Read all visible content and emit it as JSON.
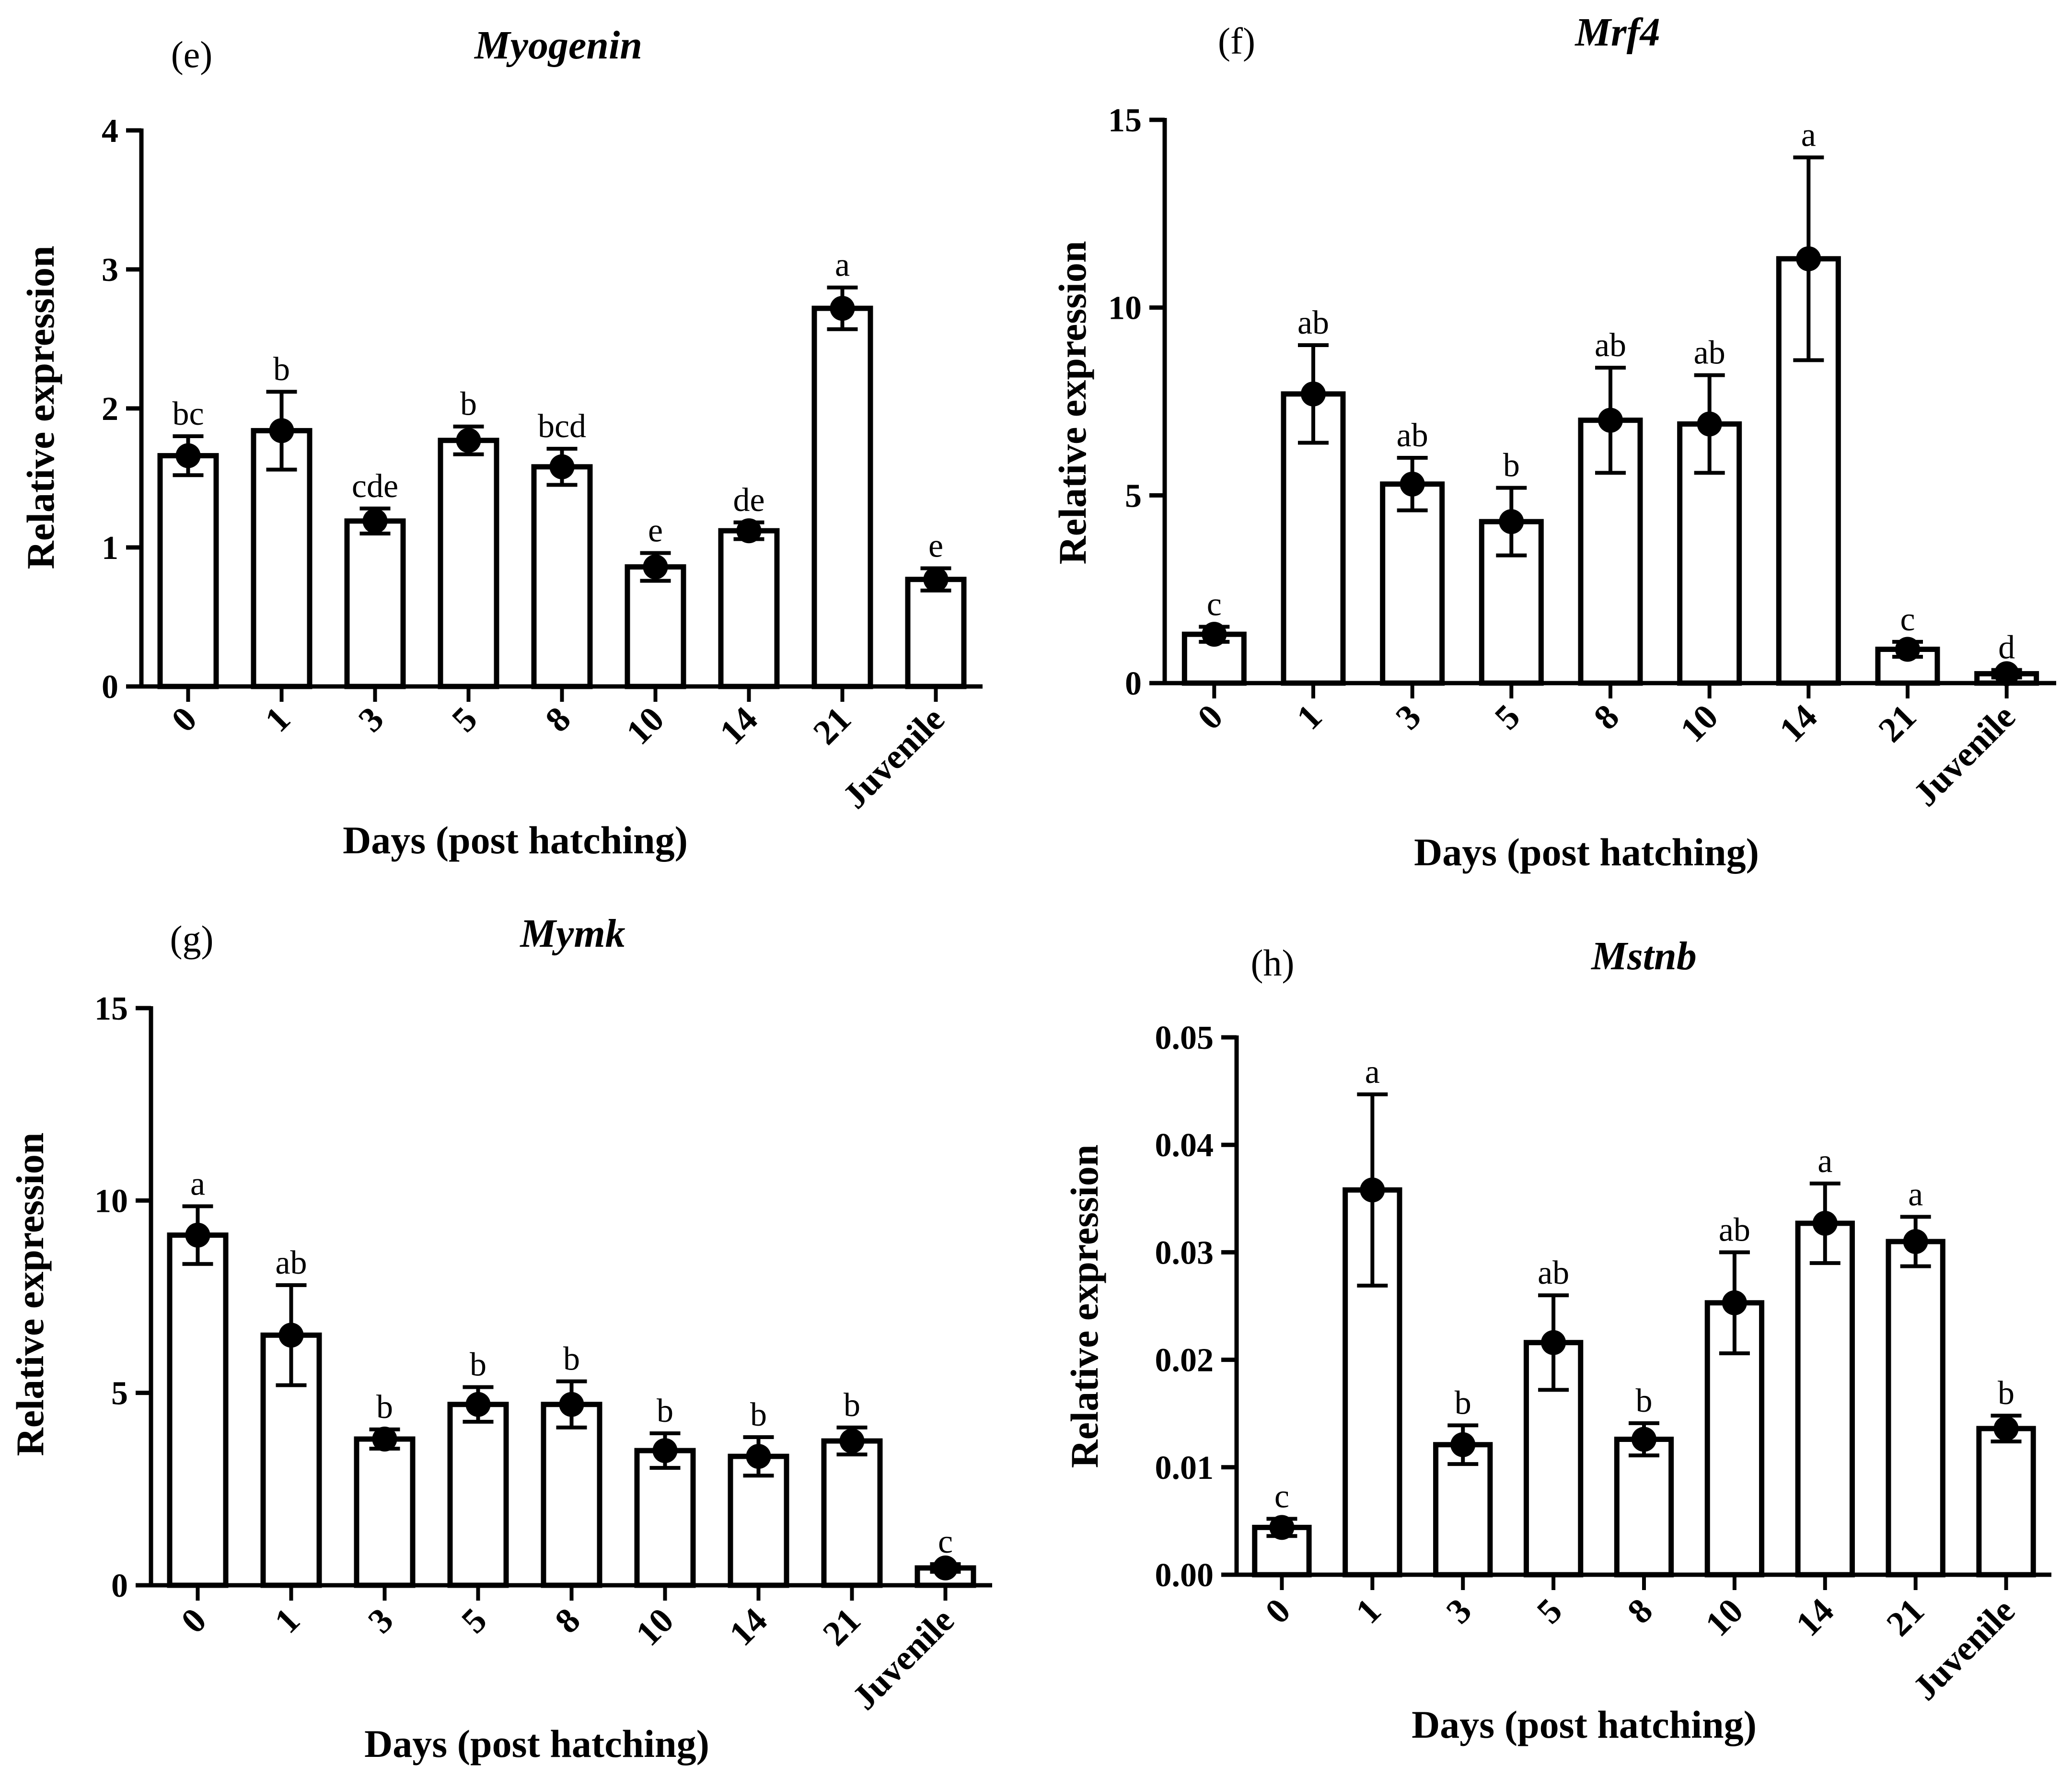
{
  "chart_data": [
    {
      "type": "bar",
      "panel": "(e)",
      "title": "Myogenin",
      "xlabel": "Days (post hatching)",
      "ylabel": "Relative expression",
      "ylim": [
        0,
        4
      ],
      "yticks": [
        "0",
        "1",
        "2",
        "3",
        "4"
      ],
      "categories": [
        "0",
        "1",
        "3",
        "5",
        "8",
        "10",
        "14",
        "21",
        "Juvenile"
      ],
      "values": [
        1.66,
        1.84,
        1.19,
        1.77,
        1.58,
        0.86,
        1.12,
        2.72,
        0.77
      ],
      "errors": [
        0.14,
        0.28,
        0.09,
        0.1,
        0.13,
        0.1,
        0.06,
        0.15,
        0.08
      ],
      "significance": [
        "bc",
        "b",
        "cde",
        "b",
        "bcd",
        "e",
        "de",
        "a",
        "e"
      ]
    },
    {
      "type": "bar",
      "panel": "(f)",
      "title": "Mrf4",
      "xlabel": "Days (post hatching)",
      "ylabel": "Relative expression",
      "ylim": [
        0,
        15
      ],
      "yticks": [
        "0",
        "5",
        "10",
        "15"
      ],
      "categories": [
        "0",
        "1",
        "3",
        "5",
        "8",
        "10",
        "14",
        "21",
        "Juvenile"
      ],
      "values": [
        1.3,
        7.7,
        5.3,
        4.3,
        7.0,
        6.9,
        11.3,
        0.9,
        0.25
      ],
      "errors": [
        0.2,
        1.3,
        0.7,
        0.9,
        1.4,
        1.3,
        2.7,
        0.2,
        0.1
      ],
      "significance": [
        "c",
        "ab",
        "ab",
        "b",
        "ab",
        "ab",
        "a",
        "c",
        "d"
      ]
    },
    {
      "type": "bar",
      "panel": "(g)",
      "title": "Mymk",
      "xlabel": "Days (post hatching)",
      "ylabel": "Relative expression",
      "ylim": [
        0,
        15
      ],
      "yticks": [
        "0",
        "5",
        "10",
        "15"
      ],
      "categories": [
        "0",
        "1",
        "3",
        "5",
        "8",
        "10",
        "14",
        "21",
        "Juvenile"
      ],
      "values": [
        9.1,
        6.5,
        3.8,
        4.7,
        4.7,
        3.5,
        3.35,
        3.75,
        0.45
      ],
      "errors": [
        0.75,
        1.3,
        0.25,
        0.45,
        0.6,
        0.45,
        0.5,
        0.35,
        0.1
      ],
      "significance": [
        "a",
        "ab",
        "b",
        "b",
        "b",
        "b",
        "b",
        "b",
        "c"
      ]
    },
    {
      "type": "bar",
      "panel": "(h)",
      "title": "Mstnb",
      "xlabel": "Days (post hatching)",
      "ylabel": "Relative expression",
      "ylim": [
        0,
        0.05
      ],
      "yticks": [
        "0.00",
        "0.01",
        "0.02",
        "0.03",
        "0.04",
        "0.05"
      ],
      "categories": [
        "0",
        "1",
        "3",
        "5",
        "8",
        "10",
        "14",
        "21",
        "Juvenile"
      ],
      "values": [
        0.0044,
        0.0358,
        0.0121,
        0.0216,
        0.0126,
        0.0253,
        0.0327,
        0.031,
        0.0136
      ],
      "errors": [
        0.0008,
        0.0089,
        0.0018,
        0.0044,
        0.0015,
        0.0047,
        0.0037,
        0.0023,
        0.0012
      ],
      "significance": [
        "c",
        "a",
        "b",
        "ab",
        "b",
        "ab",
        "a",
        "a",
        "b"
      ]
    }
  ]
}
